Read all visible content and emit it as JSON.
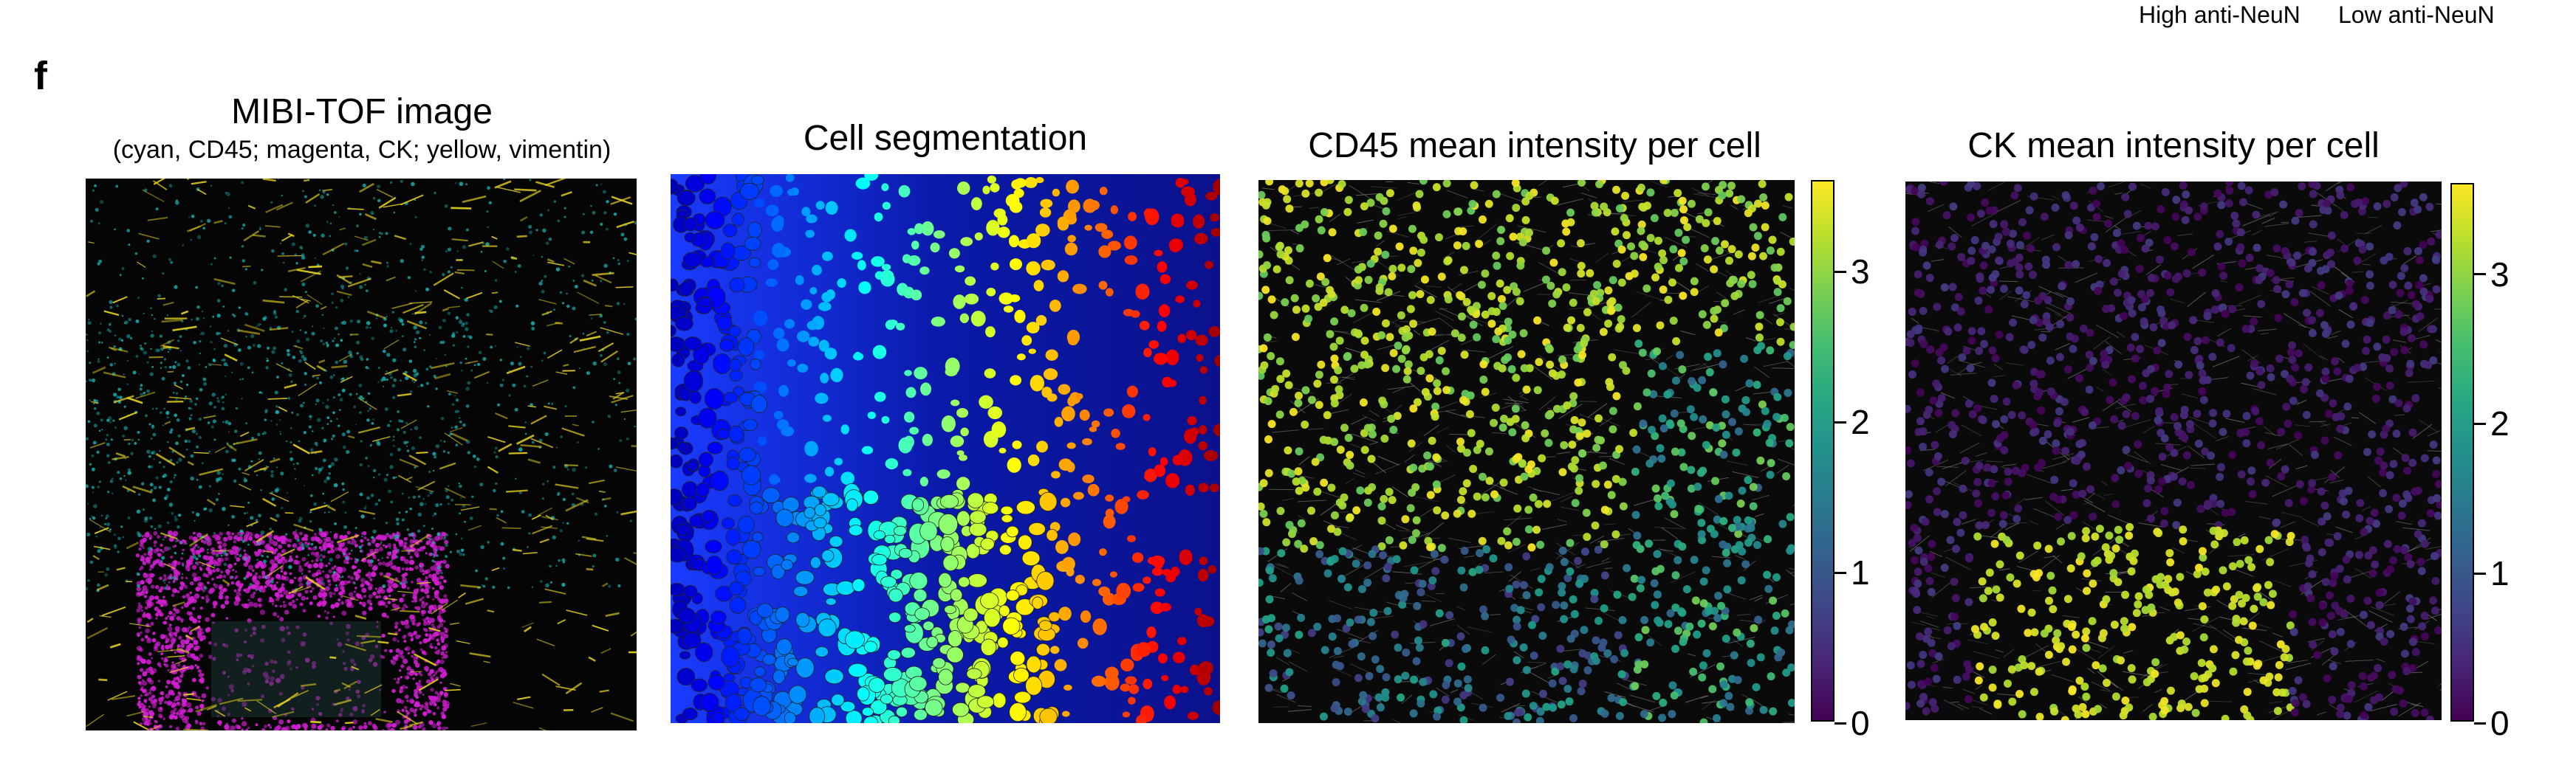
{
  "legend": {
    "high_label": "High anti-NeuN",
    "low_label": "Low anti-NeuN"
  },
  "panel_label": "f",
  "panels": [
    {
      "title": "MIBI-TOF image",
      "subtitle": "(cyan, CD45; magenta, CK; yellow, vimentin)",
      "channels": [
        {
          "marker": "CD45",
          "color": "#19b9b9"
        },
        {
          "marker": "CK",
          "color": "#d21ed2"
        },
        {
          "marker": "vimentin",
          "color": "#e6d21e"
        }
      ]
    },
    {
      "title": "Cell segmentation",
      "colormap": "jet"
    },
    {
      "title": "CD45 mean intensity per cell",
      "colormap": "viridis",
      "colorbar": {
        "ticks": [
          "3",
          "2",
          "1",
          "0"
        ],
        "range": [
          0,
          3.6
        ]
      }
    },
    {
      "title": "CK mean intensity per cell",
      "colormap": "viridis",
      "colorbar": {
        "ticks": [
          "3",
          "2",
          "1",
          "0"
        ],
        "range": [
          0,
          3.6
        ]
      }
    }
  ]
}
